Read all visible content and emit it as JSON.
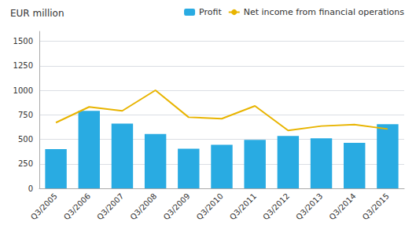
{
  "chart_data": {
    "type": "bar",
    "title": "EUR million",
    "categories": [
      "Q3/2005",
      "Q3/2006",
      "Q3/2007",
      "Q3/2008",
      "Q3/2009",
      "Q3/2010",
      "Q3/2011",
      "Q3/2012",
      "Q3/2013",
      "Q3/2014",
      "Q3/2015"
    ],
    "series": [
      {
        "name": "Profit",
        "type": "bar",
        "color": "#29abe2",
        "values": [
          400,
          790,
          660,
          555,
          405,
          445,
          495,
          535,
          510,
          465,
          655
        ]
      },
      {
        "name": "Net income from financial operations",
        "type": "line",
        "color": "#e8b400",
        "values": [
          670,
          830,
          790,
          1000,
          725,
          710,
          840,
          590,
          635,
          650,
          605
        ]
      }
    ],
    "ylim": [
      0,
      1600
    ],
    "yticks": [
      0,
      250,
      500,
      750,
      1000,
      1250,
      1500
    ],
    "grid": true,
    "legend": "upper right"
  }
}
